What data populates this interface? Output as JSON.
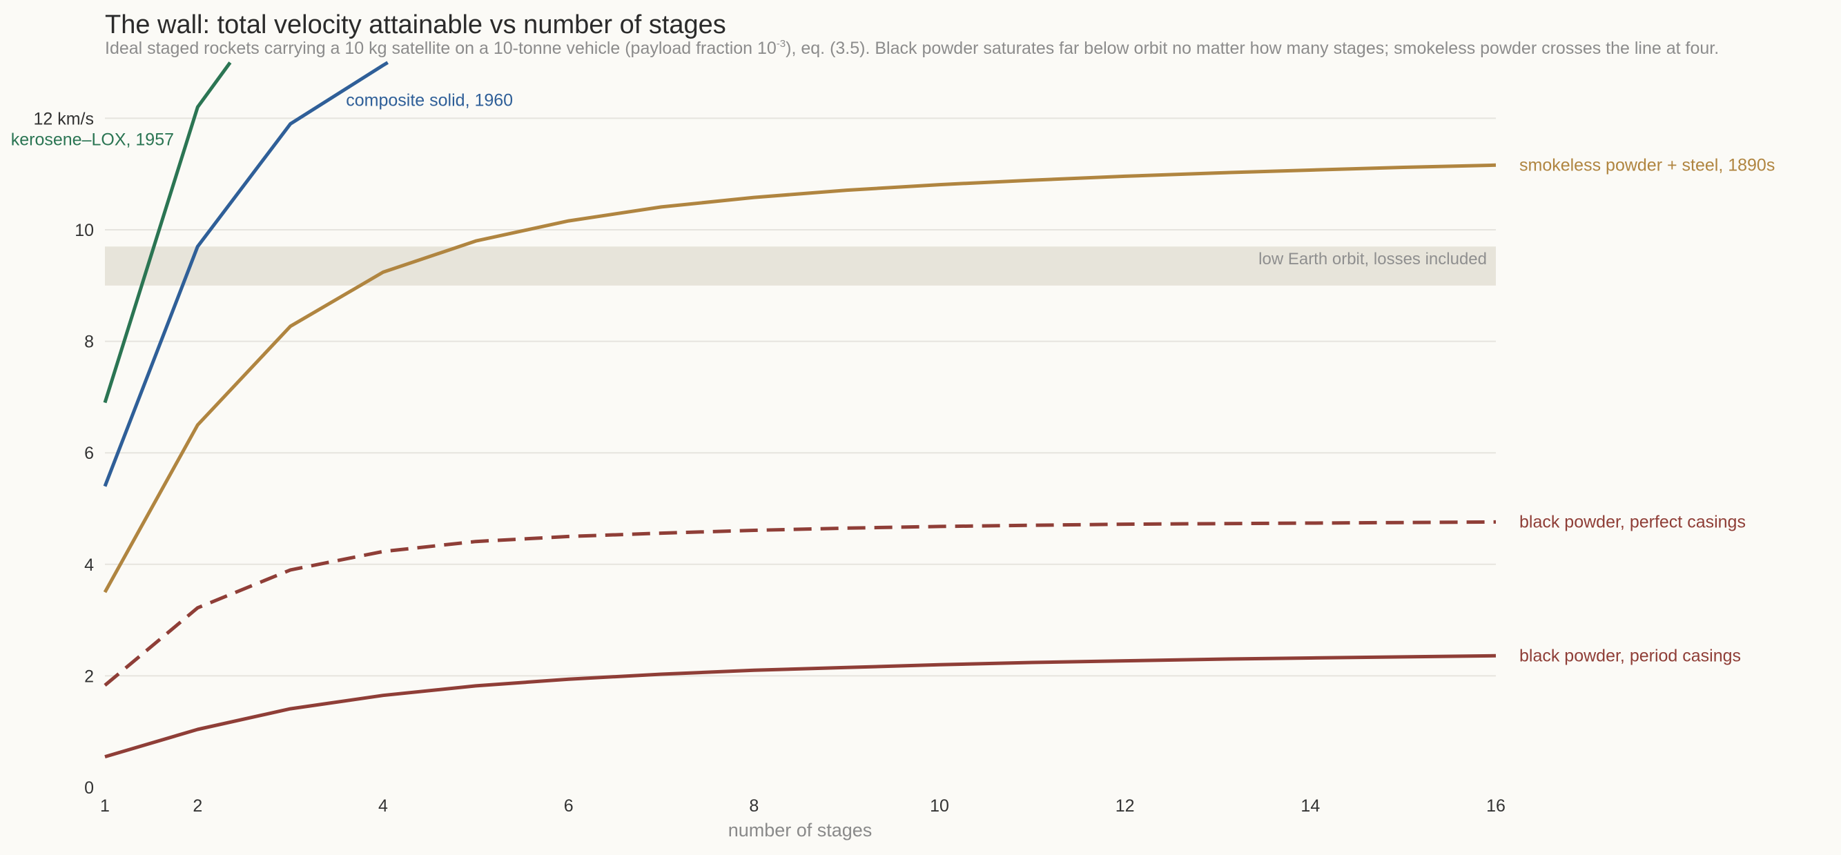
{
  "chart_data": {
    "type": "line",
    "title": "The wall: total velocity attainable vs number of stages",
    "subtitle_parts": {
      "before": "Ideal staged rockets carrying a 10 kg satellite on a 10-tonne vehicle (payload fraction 10",
      "sup": "-3",
      "after": "), eq. (3.5). Black powder saturates far below orbit no matter how many stages; smokeless powder crosses the line at four."
    },
    "xlabel": "number of stages",
    "ylabel": "",
    "xlim": [
      1,
      16
    ],
    "ylim": [
      0,
      12.5
    ],
    "x_ticks": [
      {
        "value": 1,
        "label": "1"
      },
      {
        "value": 2,
        "label": "2"
      },
      {
        "value": 4,
        "label": "4"
      },
      {
        "value": 6,
        "label": "6"
      },
      {
        "value": 8,
        "label": "8"
      },
      {
        "value": 10,
        "label": "10"
      },
      {
        "value": 12,
        "label": "12"
      },
      {
        "value": 14,
        "label": "14"
      },
      {
        "value": 16,
        "label": "16"
      }
    ],
    "y_ticks": [
      {
        "value": 0,
        "label": "0"
      },
      {
        "value": 2,
        "label": "2"
      },
      {
        "value": 4,
        "label": "4"
      },
      {
        "value": 6,
        "label": "6"
      },
      {
        "value": 8,
        "label": "8"
      },
      {
        "value": 10,
        "label": "10"
      },
      {
        "value": 12,
        "label": "12 km/s"
      }
    ],
    "grid": "horizontal",
    "band": {
      "y0": 9.0,
      "y1": 9.7,
      "label": "low Earth orbit, losses included",
      "color": "#e7e4da"
    },
    "series": [
      {
        "name": "kerosene–LOX, 1957",
        "color": "#2b7553",
        "dash": false,
        "x": [
          1,
          2,
          2.35
        ],
        "y": [
          6.9,
          12.2,
          13.0
        ],
        "label_anchor": "left"
      },
      {
        "name": "composite solid, 1960",
        "color": "#2f5f98",
        "dash": false,
        "x": [
          1,
          2,
          3,
          4,
          4.05
        ],
        "y": [
          5.4,
          9.7,
          11.9,
          12.95,
          13.0
        ],
        "label_anchor": "mid"
      },
      {
        "name": "smokeless powder + steel, 1890s",
        "color": "#b08540",
        "dash": false,
        "x": [
          1,
          2,
          3,
          4,
          5,
          6,
          7,
          8,
          9,
          10,
          11,
          12,
          13,
          14,
          15,
          16
        ],
        "y": [
          3.5,
          6.5,
          8.27,
          9.24,
          9.8,
          10.16,
          10.41,
          10.58,
          10.71,
          10.81,
          10.89,
          10.96,
          11.02,
          11.07,
          11.12,
          11.16
        ],
        "label_anchor": "end"
      },
      {
        "name": "black powder, perfect casings",
        "color": "#8f3e37",
        "dash": true,
        "x": [
          1,
          2,
          3,
          4,
          5,
          6,
          7,
          8,
          9,
          10,
          11,
          12,
          13,
          14,
          15,
          16
        ],
        "y": [
          1.83,
          3.22,
          3.9,
          4.23,
          4.41,
          4.5,
          4.56,
          4.61,
          4.65,
          4.68,
          4.7,
          4.72,
          4.73,
          4.74,
          4.75,
          4.76
        ],
        "label_anchor": "end"
      },
      {
        "name": "black powder, period casings",
        "color": "#8f3e37",
        "dash": false,
        "x": [
          1,
          2,
          3,
          4,
          5,
          6,
          7,
          8,
          9,
          10,
          11,
          12,
          13,
          14,
          15,
          16
        ],
        "y": [
          0.55,
          1.04,
          1.41,
          1.65,
          1.82,
          1.94,
          2.03,
          2.1,
          2.15,
          2.2,
          2.24,
          2.27,
          2.3,
          2.32,
          2.34,
          2.36
        ],
        "label_anchor": "end"
      }
    ]
  }
}
